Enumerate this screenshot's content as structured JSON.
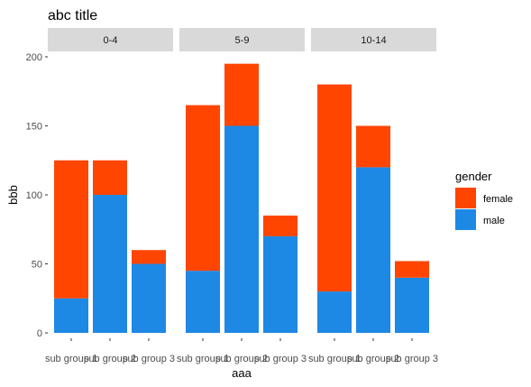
{
  "chart_data": {
    "type": "bar",
    "stacked": true,
    "title": "abc title",
    "xlabel": "aaa",
    "ylabel": "bbb",
    "ylim": [
      0,
      200
    ],
    "yticks": [
      0,
      50,
      100,
      150,
      200
    ],
    "grid": false,
    "legend": {
      "title": "gender",
      "position": "right",
      "entries": [
        "female",
        "male"
      ]
    },
    "colors": {
      "female": "#FF4500",
      "male": "#1E88E5"
    },
    "categories": [
      "sub group 1",
      "sub group 2",
      "sub group 3"
    ],
    "facets": [
      {
        "label": "0-4",
        "female": [
          100,
          25,
          10
        ],
        "male": [
          25,
          100,
          50
        ]
      },
      {
        "label": "5-9",
        "female": [
          120,
          45,
          15
        ],
        "male": [
          45,
          150,
          70
        ]
      },
      {
        "label": "10-14",
        "female": [
          150,
          30,
          12
        ],
        "male": [
          30,
          120,
          40
        ]
      }
    ]
  }
}
